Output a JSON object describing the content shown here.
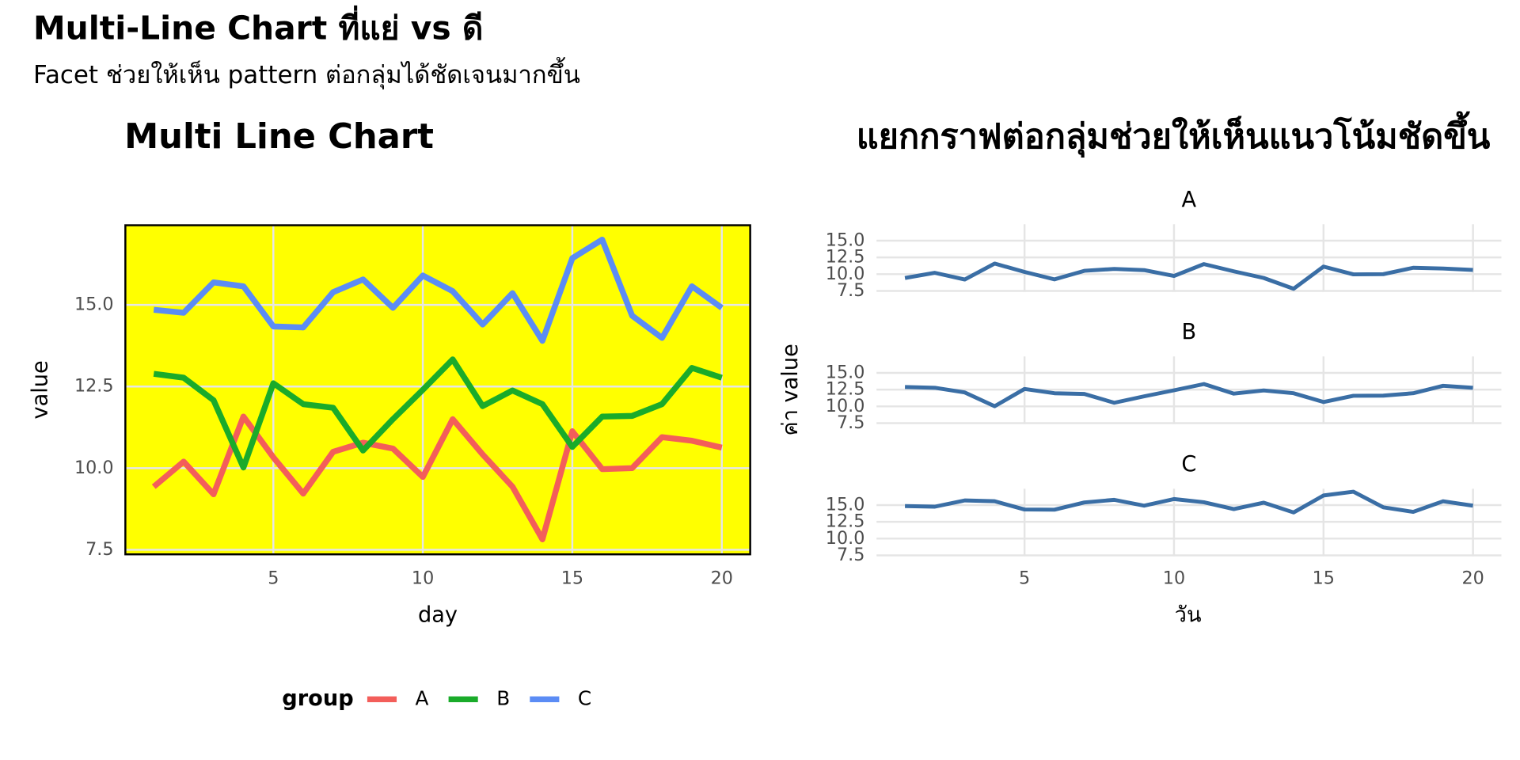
{
  "header": {
    "title": "Multi-Line Chart ที่แย่ vs ดี",
    "subtitle": "Facet ช่วยให้เห็น pattern ต่อกลุ่มได้ชัดเจนมากขึ้น"
  },
  "chart_data": [
    {
      "type": "line",
      "title": "Multi Line Chart",
      "x_label": "day",
      "y_label": "value",
      "legend_title": "group",
      "background": "#ffff00",
      "border": "#000000",
      "x": [
        1,
        2,
        3,
        4,
        5,
        6,
        7,
        8,
        9,
        10,
        11,
        12,
        13,
        14,
        15,
        16,
        17,
        18,
        19,
        20
      ],
      "series": [
        {
          "name": "A",
          "color": "#f35e5a",
          "values": [
            9.43,
            10.2,
            9.2,
            11.58,
            10.33,
            9.22,
            10.5,
            10.78,
            10.6,
            9.73,
            11.5,
            10.42,
            9.43,
            7.82,
            11.13,
            9.97,
            10.0,
            10.95,
            10.84,
            10.63
          ]
        },
        {
          "name": "B",
          "color": "#1aab2a",
          "values": [
            12.89,
            12.77,
            12.08,
            10.02,
            12.6,
            11.96,
            11.85,
            10.54,
            11.5,
            12.4,
            13.33,
            11.9,
            12.38,
            11.96,
            10.65,
            11.58,
            11.6,
            11.96,
            13.07,
            12.77
          ]
        },
        {
          "name": "C",
          "color": "#5b8cf5",
          "values": [
            14.85,
            14.76,
            15.69,
            15.57,
            14.34,
            14.31,
            15.39,
            15.78,
            14.91,
            15.9,
            15.42,
            14.4,
            15.36,
            13.9,
            16.43,
            17.0,
            14.67,
            13.99,
            15.57,
            14.91
          ]
        }
      ],
      "xlim": [
        0.05,
        20.95
      ],
      "ylim": [
        7.36,
        17.44
      ],
      "xticks": [
        5,
        10,
        15,
        20
      ],
      "yticks": [
        7.5,
        {
          "value": 10,
          "label": "10.0"
        },
        12.5,
        {
          "value": 15,
          "label": "15.0"
        }
      ],
      "grid": true
    },
    {
      "type": "facet-line",
      "title": "แยกกราฟต่อกลุ่มช่วยให้เห็นแนวโน้มชัดขึ้น",
      "x_label": "วัน",
      "y_label": "ค่า value",
      "color": "#3a6ea5",
      "x": [
        1,
        2,
        3,
        4,
        5,
        6,
        7,
        8,
        9,
        10,
        11,
        12,
        13,
        14,
        15,
        16,
        17,
        18,
        19,
        20
      ],
      "facets": [
        {
          "name": "A",
          "values": [
            9.43,
            10.2,
            9.2,
            11.58,
            10.33,
            9.22,
            10.5,
            10.78,
            10.6,
            9.73,
            11.5,
            10.42,
            9.43,
            7.82,
            11.13,
            9.97,
            10.0,
            10.95,
            10.84,
            10.63
          ]
        },
        {
          "name": "B",
          "values": [
            12.89,
            12.77,
            12.08,
            10.02,
            12.6,
            11.96,
            11.85,
            10.54,
            11.5,
            12.4,
            13.33,
            11.9,
            12.38,
            11.96,
            10.65,
            11.58,
            11.6,
            11.96,
            13.07,
            12.77
          ]
        },
        {
          "name": "C",
          "values": [
            14.85,
            14.76,
            15.69,
            15.57,
            14.34,
            14.31,
            15.39,
            15.78,
            14.91,
            15.9,
            15.42,
            14.4,
            15.36,
            13.9,
            16.43,
            17.0,
            14.67,
            13.99,
            15.57,
            14.91
          ]
        }
      ],
      "xlim": [
        0.05,
        20.95
      ],
      "ylim": [
        7.36,
        17.44
      ],
      "xticks": [
        5,
        10,
        15,
        20
      ],
      "yticks": [
        7.5,
        {
          "value": 10,
          "label": "10.0"
        },
        12.5,
        {
          "value": 15,
          "label": "15.0"
        }
      ],
      "grid": true
    }
  ]
}
